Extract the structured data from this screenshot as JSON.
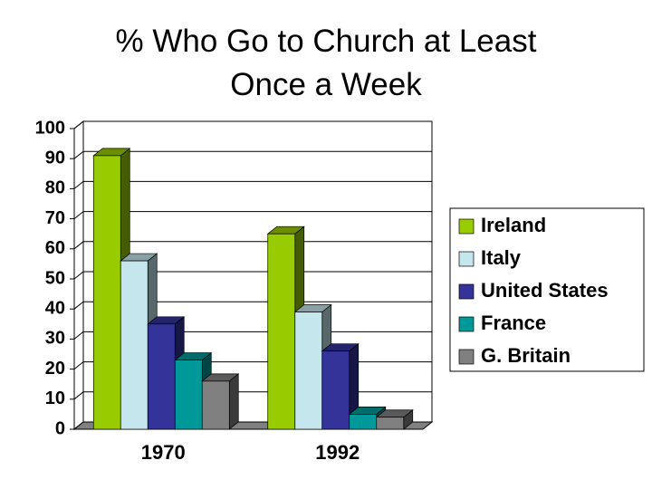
{
  "chart_data": {
    "type": "bar3d",
    "title": "% Who Go to Church at Least Once a Week",
    "categories": [
      "1970",
      "1992"
    ],
    "series": [
      {
        "name": "Ireland",
        "color": "#99cc00",
        "values": [
          91,
          65
        ]
      },
      {
        "name": "Italy",
        "color": "#c4e6ec",
        "values": [
          56,
          39
        ]
      },
      {
        "name": "United States",
        "color": "#333399",
        "values": [
          35,
          26
        ]
      },
      {
        "name": "France",
        "color": "#009999",
        "values": [
          23,
          5
        ]
      },
      {
        "name": "G. Britain",
        "color": "#808080",
        "values": [
          16,
          4
        ]
      }
    ],
    "ylim": [
      0,
      100
    ],
    "yticks": [
      0,
      10,
      20,
      30,
      40,
      50,
      60,
      70,
      80,
      90,
      100
    ],
    "grid": true,
    "legend": "right"
  }
}
